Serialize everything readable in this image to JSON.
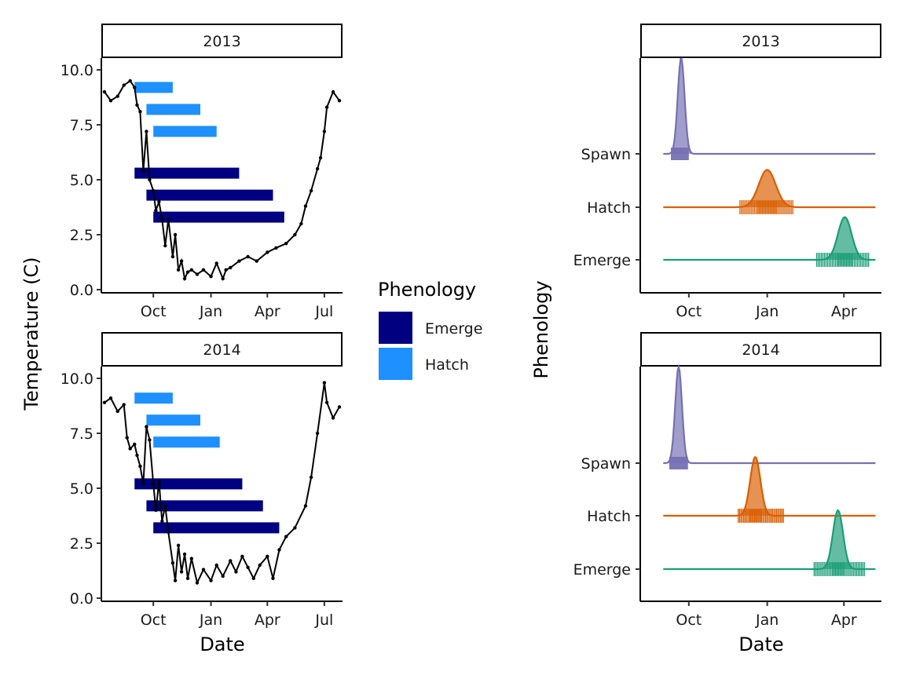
{
  "colors": {
    "emerge_bar": "#000080",
    "hatch_bar": "#1e90ff",
    "temp_line": "#000000",
    "spawn": "#7570b3",
    "hatch": "#d95f02",
    "emerge": "#1b9e77"
  },
  "legend": {
    "title": "Phenology",
    "items": [
      {
        "label": "Emerge",
        "color": "#000080"
      },
      {
        "label": "Hatch",
        "color": "#1e90ff"
      }
    ]
  },
  "left_axes": {
    "ylabel": "Temperature (C)",
    "xlabel": "Date"
  },
  "right_axes": {
    "ylabel": "Phenology",
    "xlabel": "Date"
  },
  "chart_data": [
    {
      "type": "line",
      "panel": "2013",
      "facet_label": "2013",
      "ylim": [
        0,
        10.5
      ],
      "xlim": [
        "2012-07-10",
        "2013-07-30"
      ],
      "y_ticks": [
        "0.0",
        "2.5",
        "5.0",
        "7.5",
        "10.0"
      ],
      "x_ticks": [
        {
          "date": "2012-10-01",
          "label": "Oct"
        },
        {
          "date": "2013-01-01",
          "label": "Jan"
        },
        {
          "date": "2013-04-01",
          "label": "Apr"
        },
        {
          "date": "2013-07-01",
          "label": "Jul"
        }
      ],
      "temperature_series": {
        "x": [
          "2012-07-15",
          "2012-07-25",
          "2012-08-05",
          "2012-08-15",
          "2012-08-25",
          "2012-09-01",
          "2012-09-05",
          "2012-09-10",
          "2012-09-15",
          "2012-09-20",
          "2012-09-25",
          "2012-10-01",
          "2012-10-05",
          "2012-10-10",
          "2012-10-15",
          "2012-10-20",
          "2012-10-25",
          "2012-11-01",
          "2012-11-05",
          "2012-11-10",
          "2012-11-15",
          "2012-11-20",
          "2012-11-25",
          "2012-12-01",
          "2012-12-10",
          "2012-12-20",
          "2013-01-01",
          "2013-01-10",
          "2013-01-20",
          "2013-01-25",
          "2013-02-01",
          "2013-02-15",
          "2013-03-01",
          "2013-03-15",
          "2013-04-01",
          "2013-04-15",
          "2013-05-01",
          "2013-05-15",
          "2013-05-25",
          "2013-06-01",
          "2013-06-10",
          "2013-06-20",
          "2013-06-25",
          "2013-07-01",
          "2013-07-05",
          "2013-07-15",
          "2013-07-25"
        ],
        "y": [
          9.0,
          8.6,
          8.8,
          9.3,
          9.5,
          9.2,
          8.4,
          8.1,
          5.4,
          7.2,
          5.0,
          4.5,
          3.6,
          4.0,
          3.2,
          2.0,
          3.2,
          1.5,
          2.5,
          0.9,
          1.3,
          0.5,
          0.8,
          0.9,
          0.7,
          0.9,
          0.6,
          1.2,
          0.5,
          0.9,
          1.0,
          1.3,
          1.5,
          1.3,
          1.7,
          1.9,
          2.1,
          2.5,
          3.0,
          3.8,
          4.5,
          5.5,
          6.0,
          7.2,
          8.3,
          9.0,
          8.6
        ]
      },
      "bars": [
        {
          "phenology": "Hatch",
          "y": 9.2,
          "start": "2012-09-01",
          "end": "2012-11-01"
        },
        {
          "phenology": "Hatch",
          "y": 8.2,
          "start": "2012-09-20",
          "end": "2012-12-15"
        },
        {
          "phenology": "Hatch",
          "y": 7.2,
          "start": "2012-10-01",
          "end": "2013-01-10"
        },
        {
          "phenology": "Emerge",
          "y": 5.3,
          "start": "2012-09-01",
          "end": "2013-02-15"
        },
        {
          "phenology": "Emerge",
          "y": 4.3,
          "start": "2012-09-20",
          "end": "2013-04-10"
        },
        {
          "phenology": "Emerge",
          "y": 3.3,
          "start": "2012-10-01",
          "end": "2013-04-28"
        }
      ]
    },
    {
      "type": "line",
      "panel": "2014",
      "facet_label": "2014",
      "ylim": [
        0,
        10.5
      ],
      "xlim": [
        "2013-07-10",
        "2014-07-30"
      ],
      "y_ticks": [
        "0.0",
        "2.5",
        "5.0",
        "7.5",
        "10.0"
      ],
      "x_ticks": [
        {
          "date": "2013-10-01",
          "label": "Oct"
        },
        {
          "date": "2014-01-01",
          "label": "Jan"
        },
        {
          "date": "2014-04-01",
          "label": "Apr"
        },
        {
          "date": "2014-07-01",
          "label": "Jul"
        }
      ],
      "temperature_series": {
        "x": [
          "2013-07-15",
          "2013-07-25",
          "2013-08-05",
          "2013-08-15",
          "2013-08-20",
          "2013-08-25",
          "2013-09-01",
          "2013-09-05",
          "2013-09-10",
          "2013-09-15",
          "2013-09-20",
          "2013-09-25",
          "2013-10-01",
          "2013-10-05",
          "2013-10-10",
          "2013-10-15",
          "2013-10-20",
          "2013-10-25",
          "2013-11-01",
          "2013-11-05",
          "2013-11-10",
          "2013-11-15",
          "2013-11-20",
          "2013-11-25",
          "2013-12-01",
          "2013-12-10",
          "2013-12-20",
          "2014-01-01",
          "2014-01-10",
          "2014-01-20",
          "2014-02-01",
          "2014-02-10",
          "2014-02-20",
          "2014-03-01",
          "2014-03-10",
          "2014-03-20",
          "2014-04-01",
          "2014-04-10",
          "2014-04-20",
          "2014-05-01",
          "2014-05-15",
          "2014-06-01",
          "2014-06-10",
          "2014-06-20",
          "2014-07-01",
          "2014-07-05",
          "2014-07-15",
          "2014-07-25"
        ],
        "y": [
          8.9,
          9.1,
          8.5,
          8.8,
          7.3,
          6.8,
          7.0,
          6.5,
          6.0,
          5.2,
          7.8,
          7.2,
          5.2,
          4.0,
          5.3,
          3.5,
          4.2,
          3.0,
          1.6,
          0.8,
          2.4,
          1.2,
          2.0,
          0.9,
          1.8,
          0.7,
          1.3,
          0.8,
          1.5,
          1.0,
          1.7,
          1.2,
          1.9,
          1.4,
          0.9,
          1.5,
          1.9,
          0.9,
          2.2,
          2.8,
          3.2,
          4.2,
          5.5,
          7.5,
          9.8,
          8.9,
          8.2,
          8.7
        ]
      },
      "bars": [
        {
          "phenology": "Hatch",
          "y": 9.1,
          "start": "2013-09-01",
          "end": "2013-11-01"
        },
        {
          "phenology": "Hatch",
          "y": 8.1,
          "start": "2013-09-20",
          "end": "2013-12-15"
        },
        {
          "phenology": "Hatch",
          "y": 7.1,
          "start": "2013-10-01",
          "end": "2014-01-15"
        },
        {
          "phenology": "Emerge",
          "y": 5.2,
          "start": "2013-09-01",
          "end": "2014-02-20"
        },
        {
          "phenology": "Emerge",
          "y": 4.2,
          "start": "2013-09-20",
          "end": "2014-03-25"
        },
        {
          "phenology": "Emerge",
          "y": 3.2,
          "start": "2013-10-01",
          "end": "2014-04-20"
        }
      ]
    },
    {
      "type": "area",
      "panel": "2013",
      "facet_label": "2013",
      "xlim": [
        "2012-08-05",
        "2013-05-15"
      ],
      "categories": [
        "Spawn",
        "Hatch",
        "Emerge"
      ],
      "x_ticks": [
        {
          "date": "2012-10-01",
          "label": "Oct"
        },
        {
          "date": "2013-01-01",
          "label": "Jan"
        },
        {
          "date": "2013-04-01",
          "label": "Apr"
        }
      ],
      "distributions": [
        {
          "category": "Spawn",
          "color": "#7570b3",
          "peak_date": "2012-09-22",
          "sd_days": 4,
          "peak_height": 1.8,
          "range": [
            "2012-09-10",
            "2012-10-01"
          ],
          "rug": "solid",
          "line_start": "2012-09-01",
          "line_end": "2013-05-08"
        },
        {
          "category": "Hatch",
          "color": "#d95f02",
          "peak_date": "2013-01-01",
          "sd_days": 10,
          "peak_height": 0.7,
          "range": [
            "2012-11-30",
            "2013-01-31"
          ],
          "rug": "ticks",
          "line_start": "2012-09-01",
          "line_end": "2013-05-08"
        },
        {
          "category": "Emerge",
          "color": "#1b9e77",
          "peak_date": "2013-04-02",
          "sd_days": 8,
          "peak_height": 0.8,
          "range": [
            "2013-02-28",
            "2013-04-30"
          ],
          "rug": "ticks",
          "line_start": "2012-09-01",
          "line_end": "2013-05-08"
        }
      ]
    },
    {
      "type": "area",
      "panel": "2014",
      "facet_label": "2014",
      "xlim": [
        "2013-08-05",
        "2014-05-15"
      ],
      "categories": [
        "Spawn",
        "Hatch",
        "Emerge"
      ],
      "x_ticks": [
        {
          "date": "2013-10-01",
          "label": "Oct"
        },
        {
          "date": "2014-01-01",
          "label": "Jan"
        },
        {
          "date": "2014-04-01",
          "label": "Apr"
        }
      ],
      "distributions": [
        {
          "category": "Spawn",
          "color": "#7570b3",
          "peak_date": "2013-09-19",
          "sd_days": 4,
          "peak_height": 1.8,
          "range": [
            "2013-09-08",
            "2013-09-30"
          ],
          "rug": "solid",
          "line_start": "2013-09-01",
          "line_end": "2014-05-08"
        },
        {
          "category": "Hatch",
          "color": "#d95f02",
          "peak_date": "2013-12-18",
          "sd_days": 6,
          "peak_height": 1.1,
          "range": [
            "2013-11-28",
            "2014-01-20"
          ],
          "rug": "ticks",
          "line_start": "2013-09-01",
          "line_end": "2014-05-08"
        },
        {
          "category": "Emerge",
          "color": "#1b9e77",
          "peak_date": "2014-03-25",
          "sd_days": 6,
          "peak_height": 1.1,
          "range": [
            "2014-02-25",
            "2014-04-25"
          ],
          "rug": "ticks",
          "line_start": "2013-09-01",
          "line_end": "2014-05-08"
        }
      ]
    }
  ]
}
